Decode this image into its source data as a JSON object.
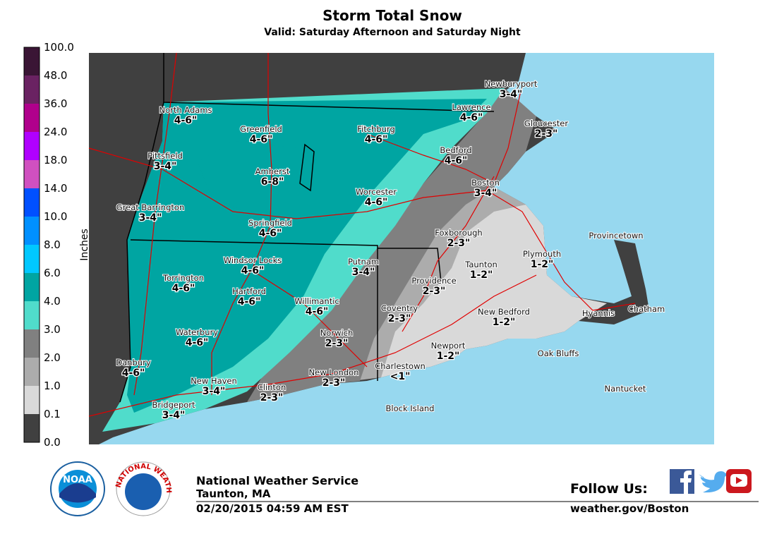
{
  "header": {
    "title": "Storm Total Snow",
    "subtitle": "Valid: Saturday Afternoon and Saturday Night"
  },
  "legend": {
    "label": "Inches",
    "ticks": [
      "100.0",
      "48.0",
      "36.0",
      "24.0",
      "18.0",
      "14.0",
      "10.0",
      "8.0",
      "6.0",
      "4.0",
      "3.0",
      "2.0",
      "1.0",
      "0.1",
      "0.0"
    ],
    "colors": [
      "#3a1535",
      "#6a2262",
      "#b0008c",
      "#b000ff",
      "#d050c0",
      "#0050ff",
      "#0090ff",
      "#00c8ff",
      "#00a5a2",
      "#50dccb",
      "#808080",
      "#acacac",
      "#d9d9d9",
      "#404040"
    ]
  },
  "cities": [
    {
      "name": "North Adams",
      "amount": "4-6\""
    },
    {
      "name": "Greenfield",
      "amount": "4-6\""
    },
    {
      "name": "Fitchburg",
      "amount": "4-6\""
    },
    {
      "name": "Lawrence",
      "amount": "4-6\""
    },
    {
      "name": "Newburyport",
      "amount": "3-4\""
    },
    {
      "name": "Gloucester",
      "amount": "2-3\""
    },
    {
      "name": "Pittsfield",
      "amount": "3-4\""
    },
    {
      "name": "Amherst",
      "amount": "6-8\""
    },
    {
      "name": "Bedford",
      "amount": "4-6\""
    },
    {
      "name": "Boston",
      "amount": "3-4\""
    },
    {
      "name": "Worcester",
      "amount": "4-6\""
    },
    {
      "name": "Great Barrington",
      "amount": "3-4\""
    },
    {
      "name": "Springfield",
      "amount": "4-6\""
    },
    {
      "name": "Foxborough",
      "amount": "2-3\""
    },
    {
      "name": "Provincetown"
    },
    {
      "name": "Plymouth",
      "amount": "1-2\""
    },
    {
      "name": "Windsor Locks",
      "amount": "4-6\""
    },
    {
      "name": "Putnam",
      "amount": "3-4\""
    },
    {
      "name": "Taunton",
      "amount": "1-2\""
    },
    {
      "name": "Torrington",
      "amount": "4-6\""
    },
    {
      "name": "Providence",
      "amount": "2-3\""
    },
    {
      "name": "Hartford",
      "amount": "4-6\""
    },
    {
      "name": "Willimantic",
      "amount": "4-6\""
    },
    {
      "name": "Coventry",
      "amount": "2-3\""
    },
    {
      "name": "Chatham"
    },
    {
      "name": "Hyannis"
    },
    {
      "name": "New Bedford",
      "amount": "1-2\""
    },
    {
      "name": "Norwich",
      "amount": "2-3\""
    },
    {
      "name": "Waterbury",
      "amount": "4-6\""
    },
    {
      "name": "Newport",
      "amount": "1-2\""
    },
    {
      "name": "Oak Bluffs"
    },
    {
      "name": "Danbury",
      "amount": "4-6\""
    },
    {
      "name": "Charlestown",
      "amount": "<1\""
    },
    {
      "name": "New Haven",
      "amount": "3-4\""
    },
    {
      "name": "New London",
      "amount": "2-3\""
    },
    {
      "name": "Clinton",
      "amount": "2-3\""
    },
    {
      "name": "Nantucket"
    },
    {
      "name": "Bridgeport",
      "amount": "3-4\""
    },
    {
      "name": "Block Island"
    }
  ],
  "footer": {
    "noaa": "NOAA",
    "nws_ring": "NATIONAL WEATHER SERVICE",
    "office": "National Weather Service",
    "location": "Taunton, MA",
    "timestamp": "02/20/2015 04:59 AM EST",
    "follow": "Follow Us:",
    "url": "weather.gov/Boston"
  }
}
